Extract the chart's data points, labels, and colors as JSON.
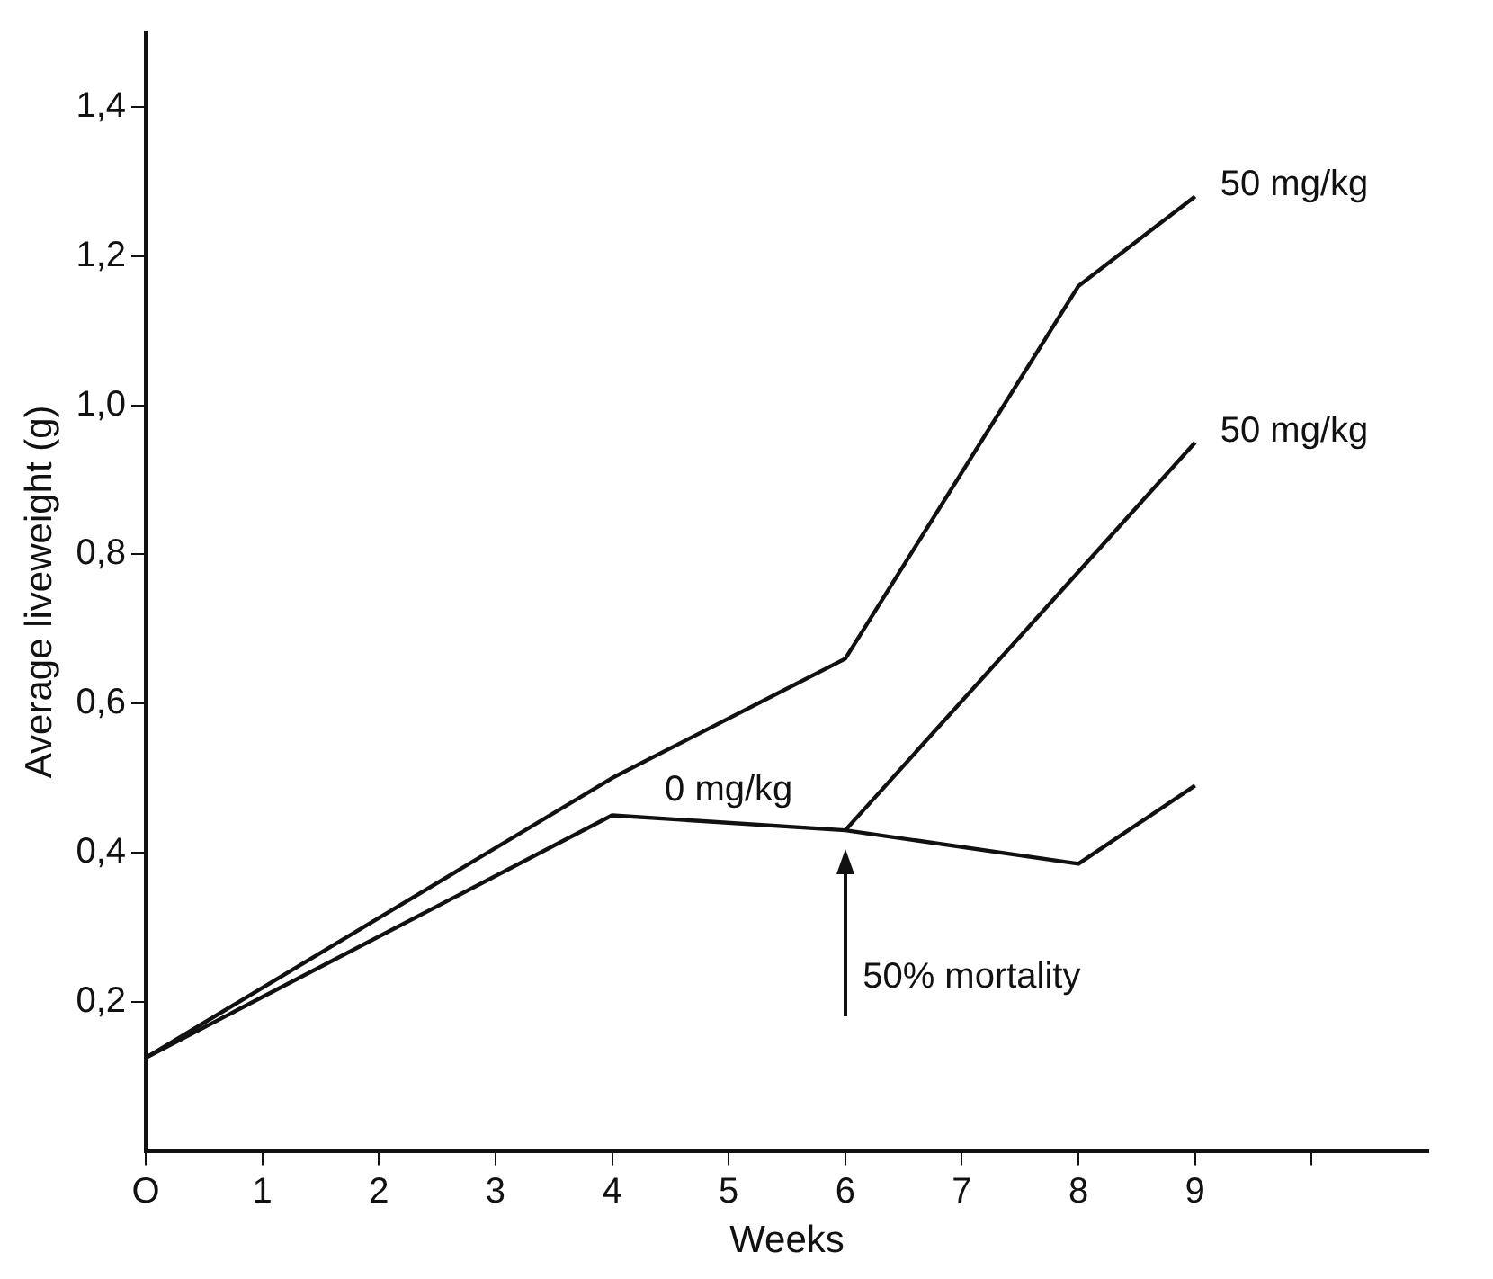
{
  "chart_data": {
    "type": "line",
    "xlabel": "Weeks",
    "ylabel": "Average liveweight (g)",
    "xlim": [
      0,
      11
    ],
    "xticks": [
      {
        "value": 0,
        "label": "O"
      },
      1,
      2,
      3,
      4,
      5,
      6,
      7,
      8,
      9,
      {
        "value": 10,
        "label": null
      }
    ],
    "ylim": [
      0,
      1.5
    ],
    "yticks": [
      {
        "value": 0.2,
        "label": "0,2"
      },
      {
        "value": 0.4,
        "label": "0,4"
      },
      {
        "value": 0.6,
        "label": "0,6"
      },
      {
        "value": 0.8,
        "label": "0,8"
      },
      {
        "value": 1.0,
        "label": "1,0"
      },
      {
        "value": 1.2,
        "label": "1,2"
      },
      {
        "value": 1.4,
        "label": "1,4"
      }
    ],
    "series": [
      {
        "name": "50 mg/kg",
        "color": "#111111",
        "x": [
          0,
          0.8,
          4,
          6,
          8,
          9
        ],
        "values": [
          0.125,
          0.2,
          0.5,
          0.66,
          1.16,
          1.28
        ]
      },
      {
        "name": "50 mg/kg",
        "color": "#111111",
        "x": [
          6,
          9
        ],
        "values": [
          0.43,
          0.95
        ]
      },
      {
        "color": "#111111",
        "x": [
          0,
          0.8,
          4,
          6,
          8,
          9
        ],
        "values": [
          0.125,
          0.19,
          0.45,
          0.43,
          0.385,
          0.49
        ]
      }
    ],
    "annotations": [
      {
        "text": "0 mg/kg",
        "x": 5,
        "y": 0.45
      },
      "50% mortality"
    ],
    "grid": false,
    "legend": false,
    "marker": "none",
    "line_style": "solid"
  }
}
